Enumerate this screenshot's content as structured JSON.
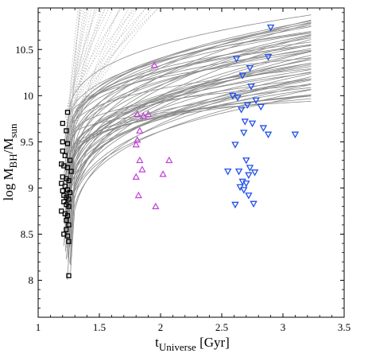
{
  "chart_data": {
    "type": "scatter",
    "xlabel": "t",
    "xlabel_sub": "Universe",
    "xlabel_suffix": " [Gyr]",
    "ylabel_prefix": "log M",
    "ylabel_sub1": "BH",
    "ylabel_mid": "/M",
    "ylabel_sub2": "sun",
    "xlim": [
      1.0,
      3.5
    ],
    "ylim": [
      7.6,
      10.95
    ],
    "xticks": [
      1,
      1.5,
      2,
      2.5,
      3,
      3.5
    ],
    "xtick_labels": [
      "1",
      "1.5",
      "2",
      "2.5",
      "3",
      "3.5"
    ],
    "yticks": [
      8,
      8.5,
      9,
      9.5,
      10,
      10.5
    ],
    "ytick_labels": [
      "8",
      "8.5",
      "9",
      "9.5",
      "10",
      "10.5"
    ],
    "grid": false,
    "legend": "none",
    "colors": {
      "black_squares": "#000000",
      "magenta_triangles": "#c040d8",
      "blue_triangles": "#2050e8",
      "solid_tracks": "#8a8a8a",
      "dotted_tracks": "#b8b8b8"
    },
    "series": [
      {
        "marker": "square",
        "color": "#000000",
        "points": [
          [
            1.24,
            9.82
          ],
          [
            1.2,
            9.7
          ],
          [
            1.23,
            9.62
          ],
          [
            1.2,
            9.5
          ],
          [
            1.24,
            9.48
          ],
          [
            1.2,
            9.4
          ],
          [
            1.22,
            9.35
          ],
          [
            1.26,
            9.3
          ],
          [
            1.19,
            9.26
          ],
          [
            1.21,
            9.24
          ],
          [
            1.24,
            9.22
          ],
          [
            1.27,
            9.18
          ],
          [
            1.2,
            9.12
          ],
          [
            1.23,
            9.1
          ],
          [
            1.25,
            9.08
          ],
          [
            1.19,
            9.05
          ],
          [
            1.22,
            9.02
          ],
          [
            1.24,
            8.98
          ],
          [
            1.2,
            8.97
          ],
          [
            1.26,
            8.95
          ],
          [
            1.21,
            8.92
          ],
          [
            1.23,
            8.9
          ],
          [
            1.25,
            8.88
          ],
          [
            1.21,
            8.85
          ],
          [
            1.23,
            8.82
          ],
          [
            1.25,
            8.8
          ],
          [
            1.19,
            8.75
          ],
          [
            1.22,
            8.72
          ],
          [
            1.24,
            8.7
          ],
          [
            1.23,
            8.65
          ],
          [
            1.25,
            8.6
          ],
          [
            1.23,
            8.55
          ],
          [
            1.21,
            8.5
          ],
          [
            1.24,
            8.48
          ],
          [
            1.25,
            8.42
          ],
          [
            1.25,
            8.05
          ]
        ]
      },
      {
        "marker": "triangle-up",
        "color": "#c040d8",
        "points": [
          [
            1.95,
            10.33
          ],
          [
            1.81,
            9.8
          ],
          [
            1.86,
            9.78
          ],
          [
            1.9,
            9.8
          ],
          [
            1.83,
            9.62
          ],
          [
            1.81,
            9.52
          ],
          [
            1.8,
            9.47
          ],
          [
            1.83,
            9.3
          ],
          [
            2.07,
            9.3
          ],
          [
            1.85,
            9.2
          ],
          [
            1.8,
            9.12
          ],
          [
            2.02,
            9.15
          ],
          [
            1.82,
            8.92
          ],
          [
            1.96,
            8.8
          ]
        ]
      },
      {
        "marker": "triangle-down",
        "color": "#2050e8",
        "points": [
          [
            2.9,
            10.74
          ],
          [
            2.62,
            10.4
          ],
          [
            2.88,
            10.42
          ],
          [
            2.73,
            10.3
          ],
          [
            2.67,
            10.22
          ],
          [
            2.74,
            10.1
          ],
          [
            2.59,
            10.0
          ],
          [
            2.63,
            9.98
          ],
          [
            2.78,
            9.95
          ],
          [
            2.66,
            9.85
          ],
          [
            2.71,
            9.9
          ],
          [
            2.82,
            9.88
          ],
          [
            2.69,
            9.72
          ],
          [
            2.75,
            9.7
          ],
          [
            2.84,
            9.65
          ],
          [
            2.68,
            9.6
          ],
          [
            2.88,
            9.58
          ],
          [
            3.1,
            9.58
          ],
          [
            2.61,
            9.47
          ],
          [
            2.7,
            9.3
          ],
          [
            2.73,
            9.22
          ],
          [
            2.55,
            9.18
          ],
          [
            2.64,
            9.18
          ],
          [
            2.77,
            9.17
          ],
          [
            2.72,
            9.14
          ],
          [
            2.67,
            9.07
          ],
          [
            2.7,
            9.05
          ],
          [
            2.65,
            9.01
          ],
          [
            2.68,
            8.98
          ],
          [
            2.72,
            8.92
          ],
          [
            2.61,
            8.82
          ],
          [
            2.76,
            8.83
          ]
        ]
      }
    ]
  }
}
